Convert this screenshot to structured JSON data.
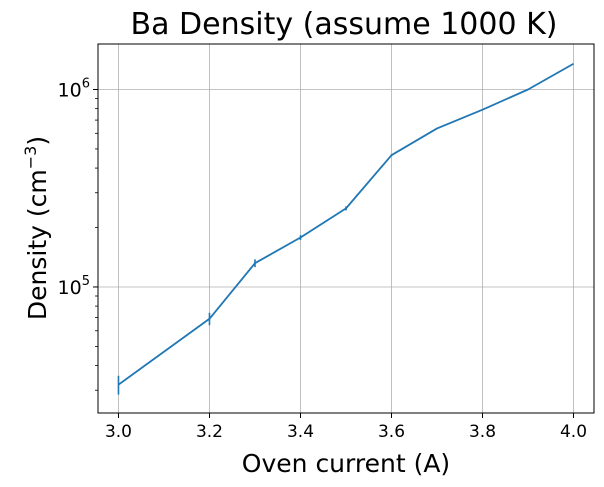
{
  "chart_data": {
    "type": "line",
    "title": "Ba Density (assume 1000 K)",
    "xlabel": "Oven current (A)",
    "ylabel_main": "Density (cm",
    "ylabel_sup": "−3",
    "ylabel_close": ")",
    "xlim": [
      2.955,
      4.045
    ],
    "ylim": [
      23000,
      1700000
    ],
    "y_scale": "log",
    "grid": true,
    "line_color": "#1f77b4",
    "x_ticks": [
      {
        "value": 3.0,
        "label": "3.0"
      },
      {
        "value": 3.2,
        "label": "3.2"
      },
      {
        "value": 3.4,
        "label": "3.4"
      },
      {
        "value": 3.6,
        "label": "3.6"
      },
      {
        "value": 3.8,
        "label": "3.8"
      },
      {
        "value": 4.0,
        "label": "4.0"
      }
    ],
    "y_major_ticks": [
      {
        "value": 100000,
        "base": "10",
        "exp": "5"
      },
      {
        "value": 1000000,
        "base": "10",
        "exp": "6"
      }
    ],
    "y_minor_ticks": [
      30000,
      40000,
      50000,
      60000,
      70000,
      80000,
      90000,
      200000,
      300000,
      400000,
      500000,
      600000,
      700000,
      800000,
      900000
    ],
    "series": [
      {
        "x": [
          3.0,
          3.2,
          3.3,
          3.4,
          3.5,
          3.6,
          3.7,
          3.8,
          3.9,
          4.0
        ],
        "y": [
          32000,
          69000,
          132000,
          178000,
          250000,
          465000,
          635000,
          790000,
          1000000,
          1350000
        ],
        "yerr": [
          3500,
          5000,
          6000,
          5000,
          6000,
          5000,
          5000,
          0,
          0,
          0
        ]
      }
    ]
  }
}
